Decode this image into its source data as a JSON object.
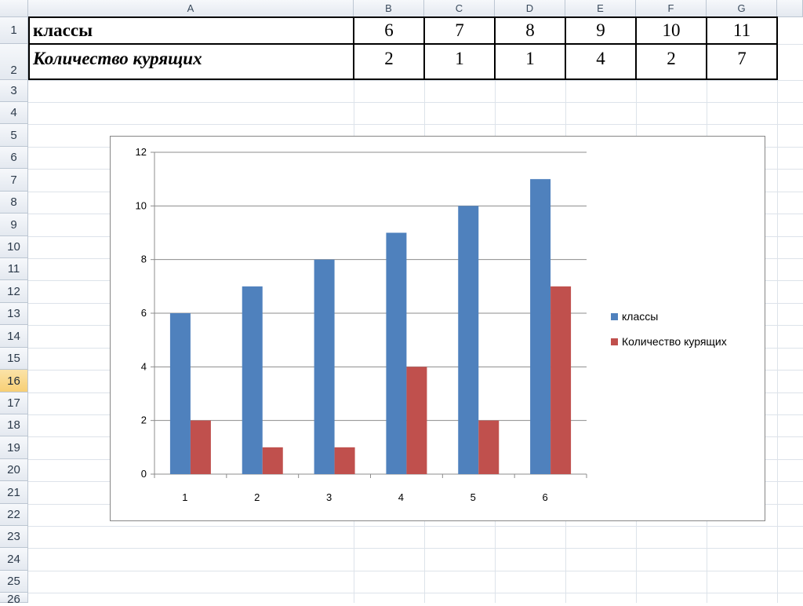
{
  "sheet": {
    "columns": [
      "A",
      "B",
      "C",
      "D",
      "E",
      "F",
      "G"
    ],
    "rows": [
      "1",
      "2",
      "3",
      "4",
      "5",
      "6",
      "7",
      "8",
      "9",
      "10",
      "11",
      "12",
      "13",
      "14",
      "15",
      "16",
      "17",
      "18",
      "19",
      "20",
      "21",
      "22",
      "23",
      "24",
      "25",
      "26"
    ],
    "active_row": "16"
  },
  "table": {
    "row1": {
      "label": "классы",
      "values": [
        "6",
        "7",
        "8",
        "9",
        "10",
        "11"
      ]
    },
    "row2": {
      "label": "Количество курящих",
      "values": [
        "2",
        "1",
        "1",
        "4",
        "2",
        "7"
      ]
    }
  },
  "chart_data": {
    "type": "bar",
    "categories": [
      "1",
      "2",
      "3",
      "4",
      "5",
      "6"
    ],
    "series": [
      {
        "name": "классы",
        "values": [
          6,
          7,
          8,
          9,
          10,
          11
        ],
        "color": "#4f81bd"
      },
      {
        "name": "Количество курящих",
        "values": [
          2,
          1,
          1,
          4,
          2,
          7
        ],
        "color": "#c0504d"
      }
    ],
    "ylim": [
      0,
      12
    ],
    "yticks": [
      "0",
      "2",
      "4",
      "6",
      "8",
      "10",
      "12"
    ],
    "grid": true,
    "legend": "right"
  }
}
